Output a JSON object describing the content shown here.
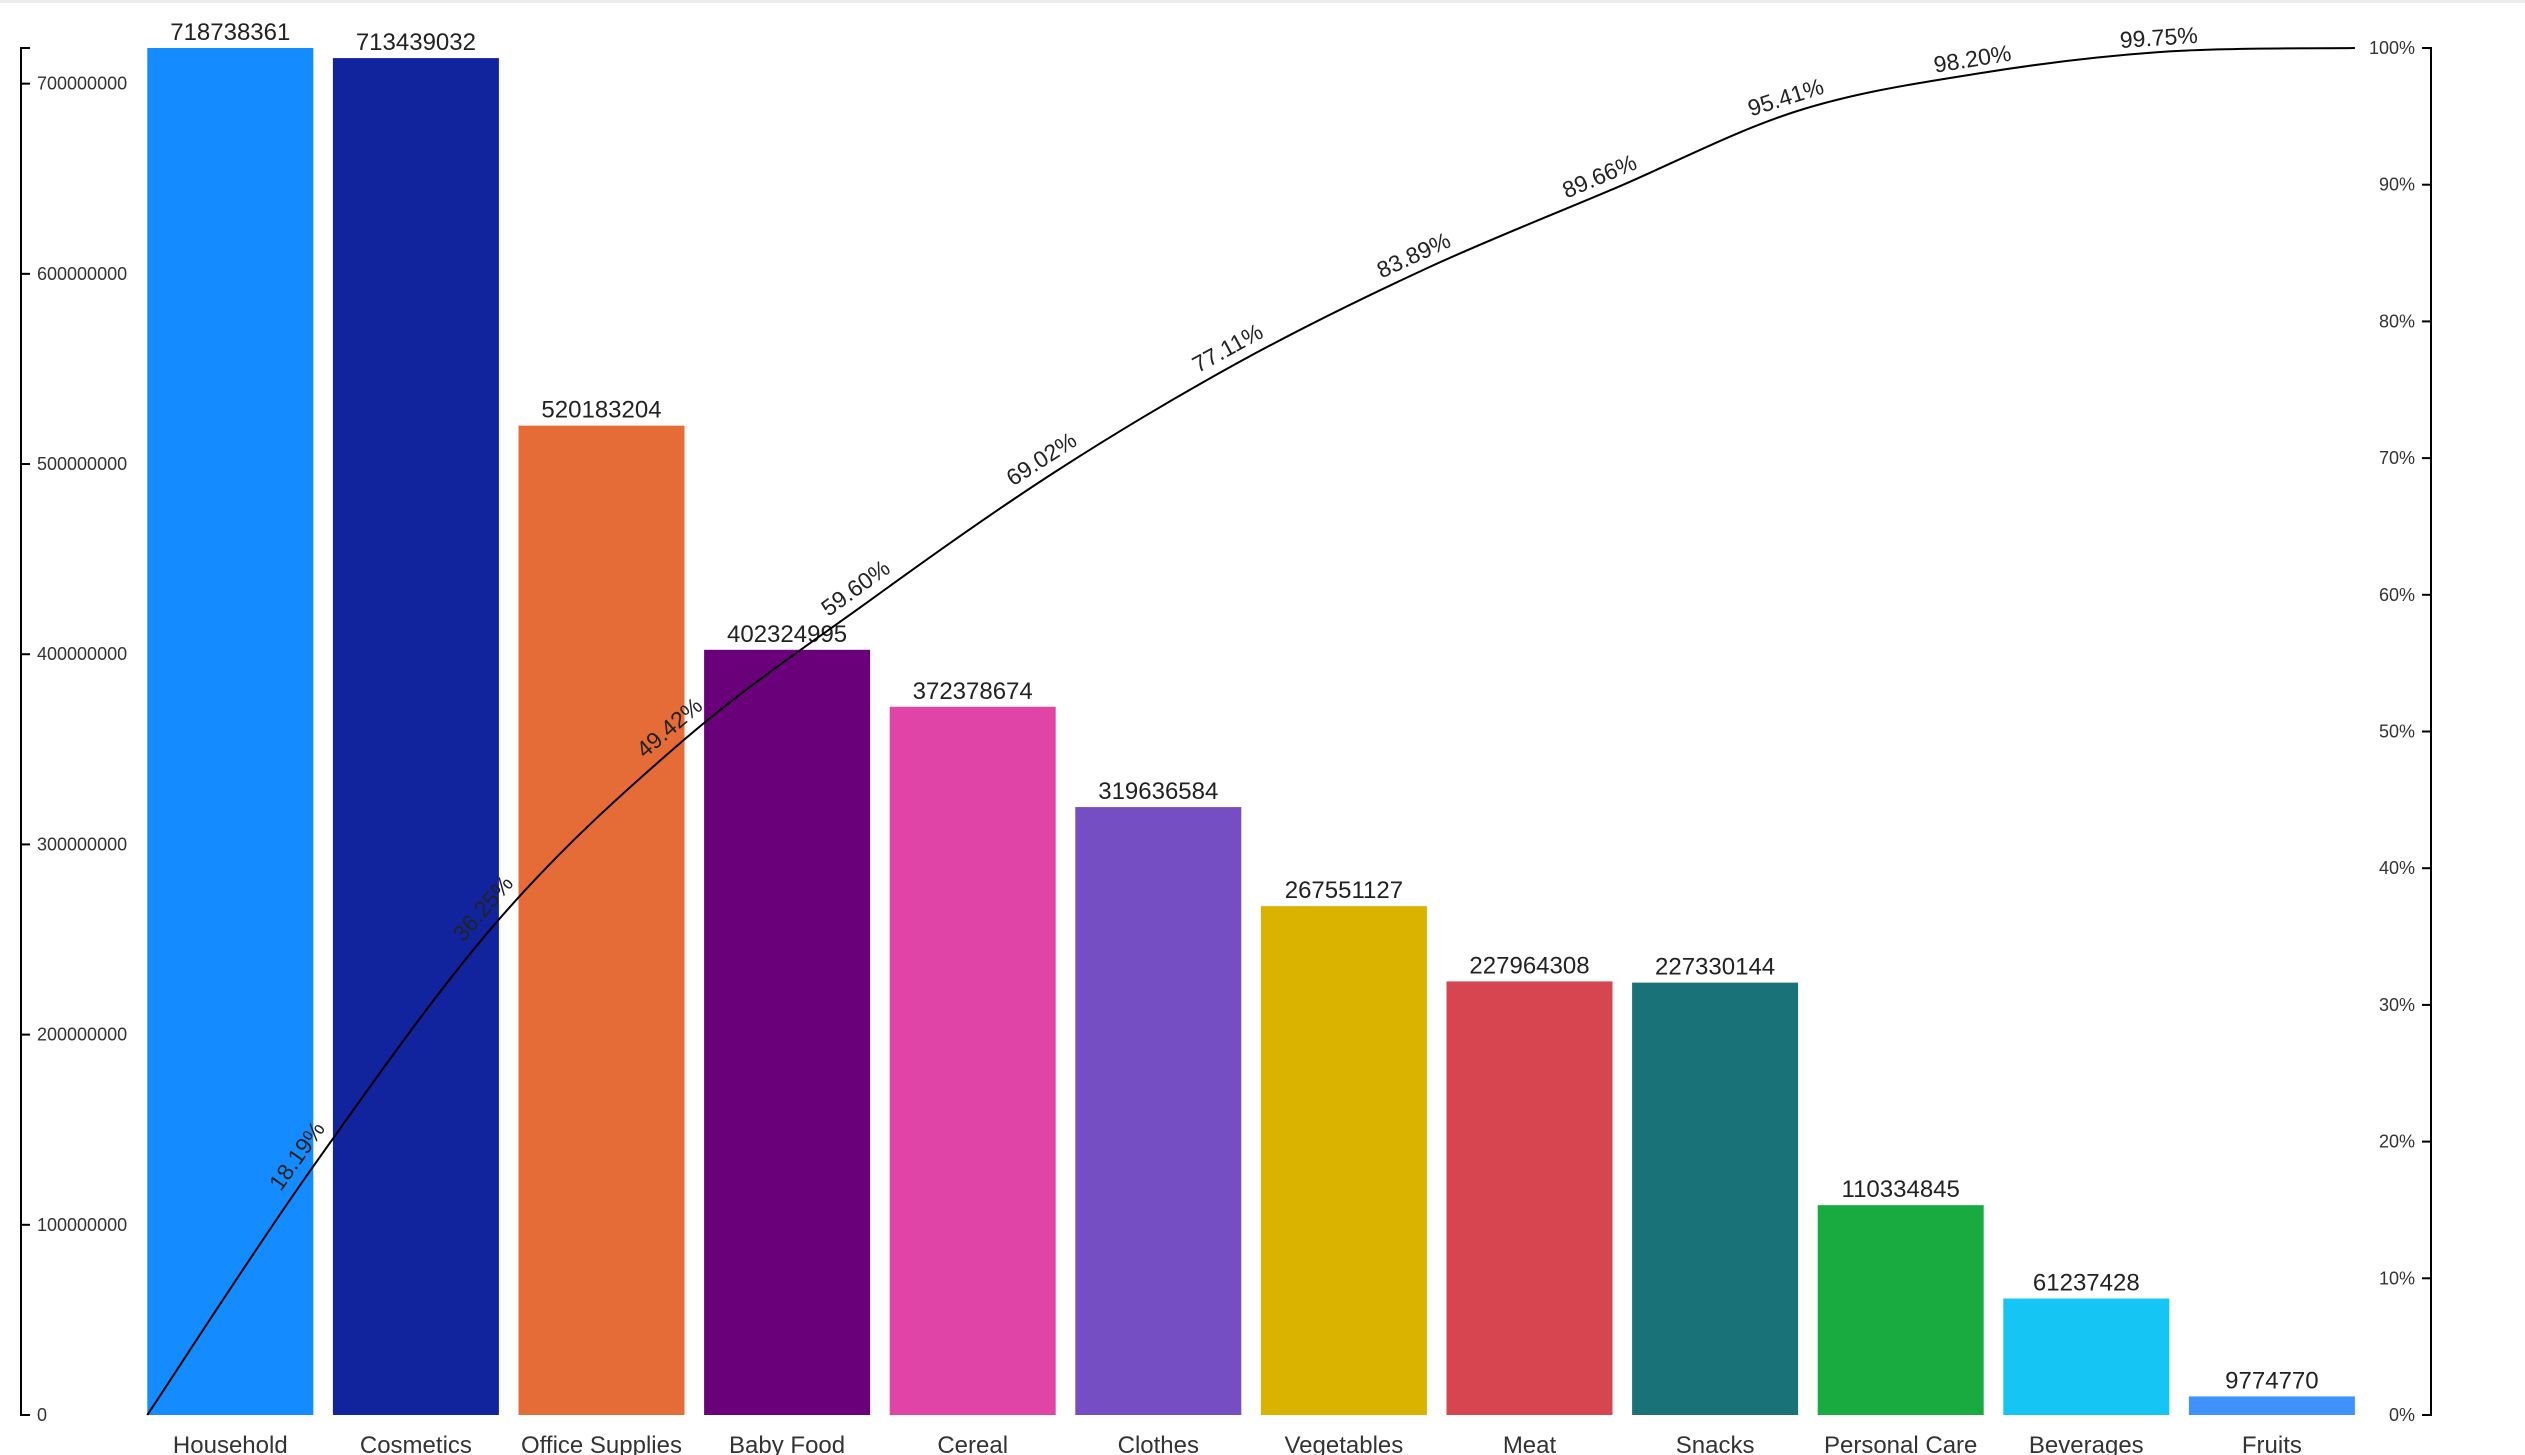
{
  "chart_data": {
    "type": "bar",
    "subtype": "pareto",
    "categories": [
      "Household",
      "Cosmetics",
      "Office Supplies",
      "Baby Food",
      "Cereal",
      "Clothes",
      "Vegetables",
      "Meat",
      "Snacks",
      "Personal Care",
      "Beverages",
      "Fruits"
    ],
    "values": [
      718738361,
      713439032,
      520183204,
      402324995,
      372378674,
      319636584,
      267551127,
      227964308,
      227330144,
      110334845,
      61237428,
      9774770
    ],
    "colors": [
      "#148CFF",
      "#12239E",
      "#E66C37",
      "#6B007B",
      "#E044A7",
      "#744EC2",
      "#D9B300",
      "#D64550",
      "#197278",
      "#1AAB40",
      "#15C6F4",
      "#4092FF"
    ],
    "cumulative_labels": [
      "18.19%",
      "36.25%",
      "49.42%",
      "59.60%",
      "69.02%",
      "77.11%",
      "83.89%",
      "89.66%",
      "95.41%",
      "98.20%",
      "99.75%",
      ""
    ],
    "cumulative_values": [
      18.19,
      36.25,
      49.42,
      59.6,
      69.02,
      77.11,
      83.89,
      89.66,
      95.41,
      98.2,
      99.75,
      100
    ],
    "line_color": "#000000",
    "ylim": [
      0,
      718738361
    ],
    "y_ticks": [
      "0",
      "100000000",
      "200000000",
      "300000000",
      "400000000",
      "500000000",
      "600000000",
      "700000000"
    ],
    "y2lim": [
      0,
      100
    ],
    "y2_ticks": [
      "0%",
      "10%",
      "20%",
      "30%",
      "40%",
      "50%",
      "60%",
      "70%",
      "80%",
      "90%",
      "100%"
    ],
    "grid": false,
    "legend": "none",
    "xlabel": "",
    "ylabel": "",
    "title": ""
  }
}
